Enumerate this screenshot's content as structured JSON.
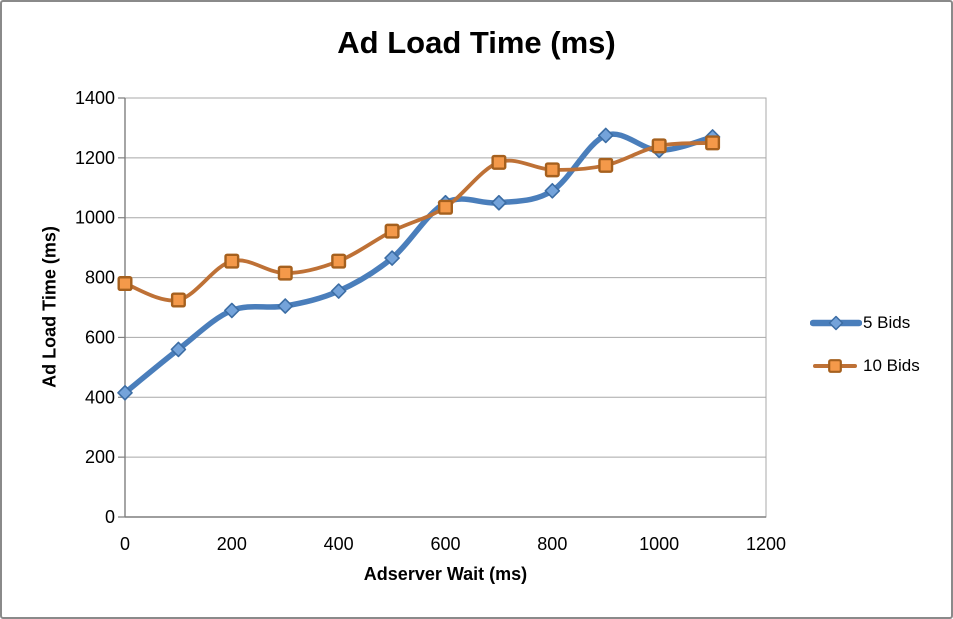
{
  "window": {
    "background": "#ffffff",
    "border_color": "#8a8a8a"
  },
  "chart_data": {
    "type": "line",
    "title": "Ad Load Time (ms)",
    "xlabel": "Adserver Wait (ms)",
    "ylabel": "Ad Load Time (ms)",
    "x": [
      0,
      100,
      200,
      300,
      400,
      500,
      600,
      700,
      800,
      900,
      1000,
      1100
    ],
    "series": [
      {
        "name": "5 Bids",
        "marker": "diamond",
        "line_color": "#4a7ebb",
        "marker_fill": "#74a3da",
        "marker_stroke": "#3c6da4",
        "line_width": 5.5,
        "values": [
          415,
          560,
          690,
          705,
          755,
          865,
          1050,
          1050,
          1090,
          1275,
          1225,
          1270
        ]
      },
      {
        "name": "10 Bids",
        "marker": "square",
        "line_color": "#be7136",
        "marker_fill": "#f4994a",
        "marker_stroke": "#a5601e",
        "line_width": 3.8,
        "values": [
          780,
          725,
          855,
          815,
          855,
          955,
          1035,
          1185,
          1160,
          1175,
          1240,
          1250
        ]
      }
    ],
    "xlim": [
      0,
      1200
    ],
    "ylim": [
      0,
      1400
    ],
    "xticks": [
      0,
      200,
      400,
      600,
      800,
      1000,
      1200
    ],
    "yticks": [
      0,
      200,
      400,
      600,
      800,
      1000,
      1200,
      1400
    ],
    "grid": "horizontal",
    "smoothed_lines": true,
    "legend_position": "right",
    "colors": {
      "gridline": "#a8a8a8",
      "axis": "#7f7f7f",
      "text": "#000000"
    }
  }
}
